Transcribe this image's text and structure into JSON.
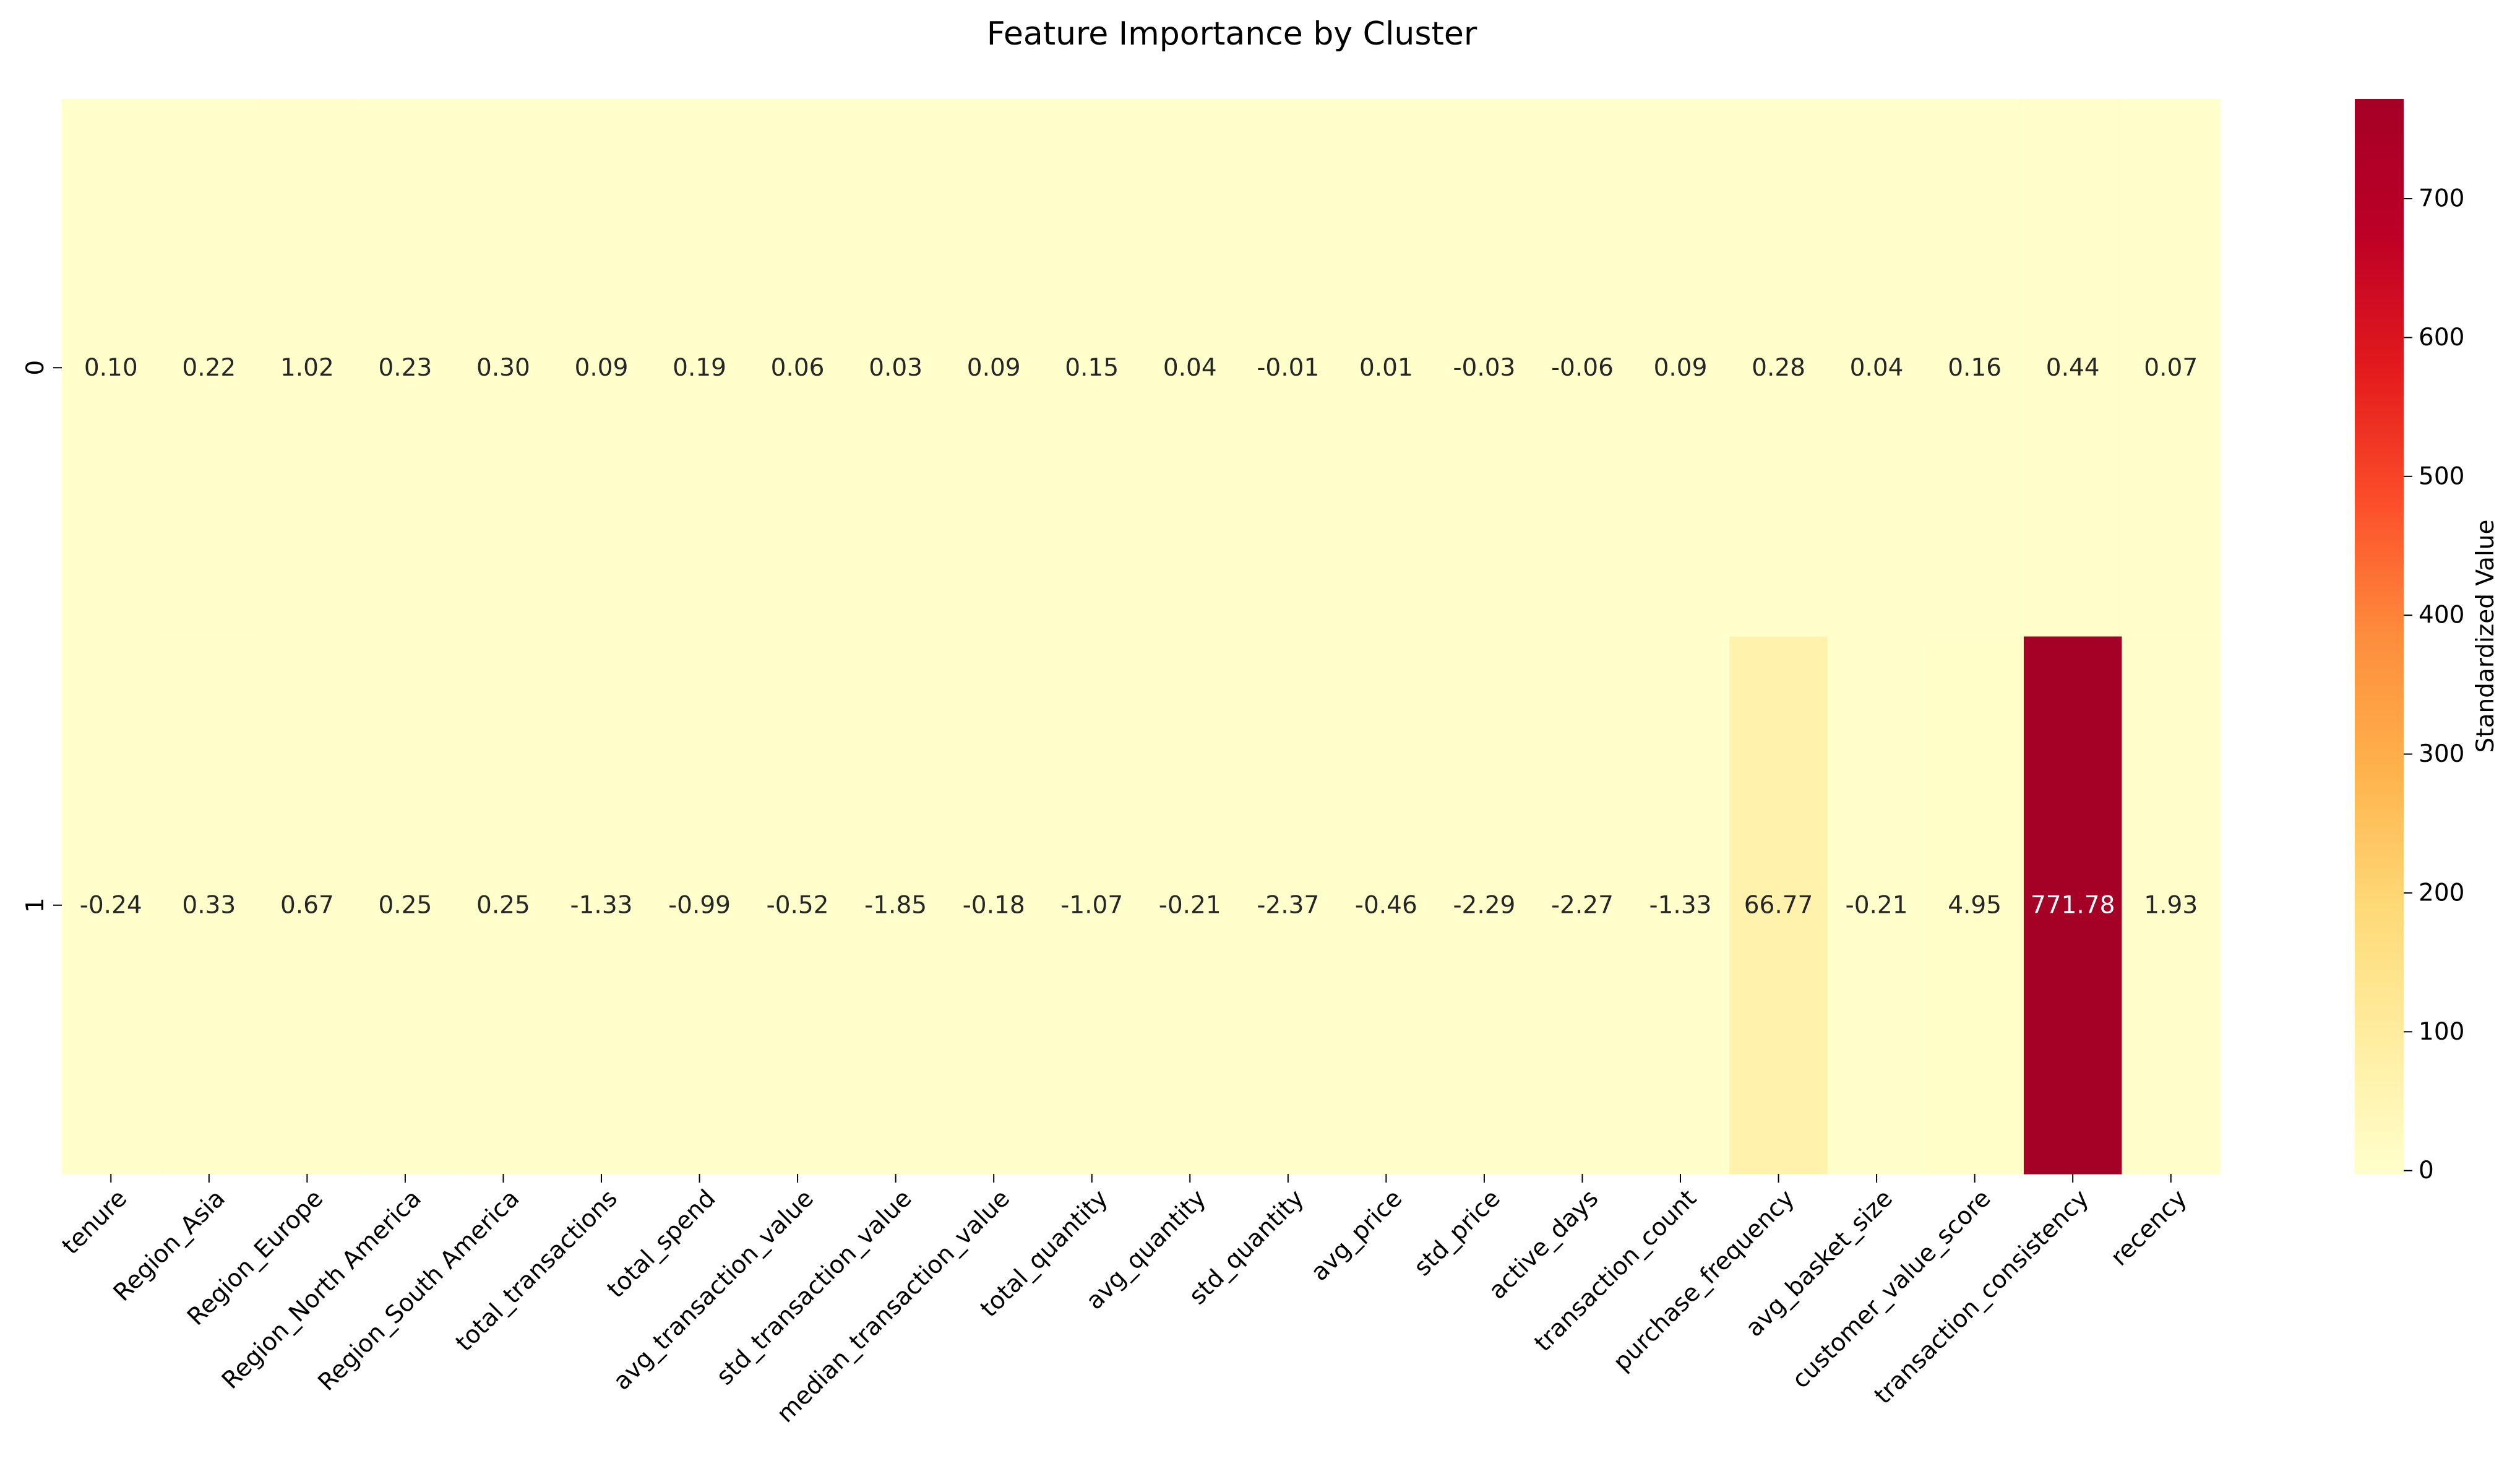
{
  "chart_data": {
    "type": "heatmap",
    "title": "Feature Importance by Cluster",
    "xlabel": "",
    "ylabel": "",
    "rows": [
      "0",
      "1"
    ],
    "columns": [
      "tenure",
      "Region_Asia",
      "Region_Europe",
      "Region_North America",
      "Region_South America",
      "total_transactions",
      "total_spend",
      "avg_transaction_value",
      "std_transaction_value",
      "median_transaction_value",
      "total_quantity",
      "avg_quantity",
      "std_quantity",
      "avg_price",
      "std_price",
      "active_days",
      "transaction_count",
      "purchase_frequency",
      "avg_basket_size",
      "customer_value_score",
      "transaction_consistency",
      "recency"
    ],
    "values": [
      [
        0.1,
        0.22,
        1.02,
        0.23,
        0.3,
        0.09,
        0.19,
        0.06,
        0.03,
        0.09,
        0.15,
        0.04,
        -0.01,
        0.01,
        -0.03,
        -0.06,
        0.09,
        0.28,
        0.04,
        0.16,
        0.44,
        0.07
      ],
      [
        -0.24,
        0.33,
        0.67,
        0.25,
        0.25,
        -1.33,
        -0.99,
        -0.52,
        -1.85,
        -0.18,
        -1.07,
        -0.21,
        -2.37,
        -0.46,
        -2.29,
        -2.27,
        -1.33,
        66.77,
        -0.21,
        4.95,
        771.78,
        1.93
      ]
    ],
    "colormap": "YlOrRd",
    "colormap_stops": [
      "#ffffcc",
      "#ffeda0",
      "#fed976",
      "#feb24c",
      "#fd8d3c",
      "#fc4e2a",
      "#e31a1c",
      "#bd0026",
      "#a50026"
    ],
    "colorbar": {
      "label": "Standardized Value",
      "ticks": [
        0,
        100,
        200,
        300,
        400,
        500,
        600,
        700
      ],
      "range": [
        -2.37,
        771.78
      ]
    },
    "annotation_format": "2 decimals",
    "grid": false,
    "legend": "colorbar-right"
  }
}
